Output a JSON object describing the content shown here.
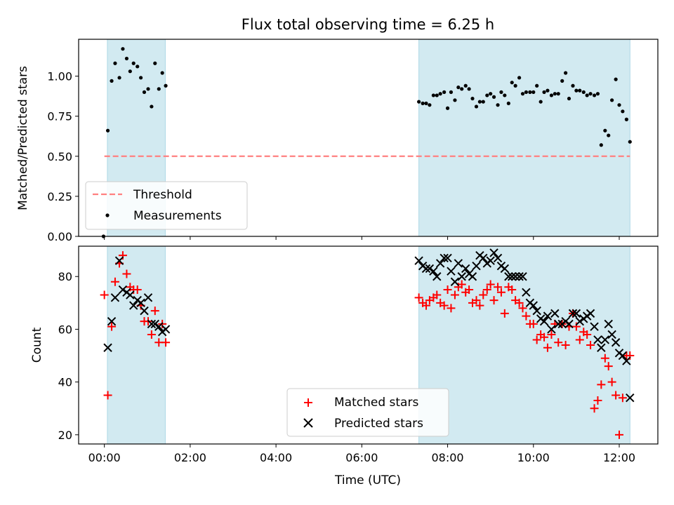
{
  "title": "Flux total observing time = 6.25 h",
  "colors": {
    "span": "#add8e6",
    "threshold": "#ff8080",
    "matched": "#ff0000",
    "predicted": "#000000"
  },
  "chart_data": [
    {
      "type": "scatter",
      "ylabel": "Matched/Predicted stars",
      "xlim": [
        -0.6,
        12.9
      ],
      "ylim": [
        0,
        1.23
      ],
      "yticks": [
        "0.00",
        "0.25",
        "0.50",
        "0.75",
        "1.00"
      ],
      "grid": false,
      "legend": "lower-left",
      "shaded_spans": [
        [
          0.07,
          1.42
        ],
        [
          7.33,
          12.25
        ]
      ],
      "threshold": {
        "name": "Threshold",
        "y": 0.5,
        "x": [
          0.0,
          12.25
        ]
      },
      "series": [
        {
          "name": "Measurements",
          "x": [
            -0.02,
            0.08,
            0.17,
            0.25,
            0.35,
            0.43,
            0.52,
            0.6,
            0.68,
            0.77,
            0.85,
            0.93,
            1.02,
            1.1,
            1.18,
            1.27,
            1.35,
            1.43,
            7.33,
            7.42,
            7.5,
            7.58,
            7.67,
            7.75,
            7.83,
            7.92,
            8.0,
            8.08,
            8.17,
            8.25,
            8.33,
            8.42,
            8.5,
            8.58,
            8.67,
            8.75,
            8.83,
            8.92,
            9.0,
            9.08,
            9.17,
            9.25,
            9.33,
            9.42,
            9.5,
            9.58,
            9.67,
            9.75,
            9.83,
            9.92,
            10.0,
            10.08,
            10.17,
            10.25,
            10.33,
            10.42,
            10.5,
            10.58,
            10.67,
            10.75,
            10.83,
            10.92,
            11.0,
            11.08,
            11.17,
            11.25,
            11.33,
            11.42,
            11.5,
            11.58,
            11.67,
            11.75,
            11.83,
            11.92,
            12.0,
            12.08,
            12.17,
            12.25
          ],
          "y": [
            0.0,
            0.66,
            0.97,
            1.08,
            0.99,
            1.17,
            1.11,
            1.03,
            1.08,
            1.06,
            0.99,
            0.9,
            0.92,
            0.81,
            1.08,
            0.92,
            1.02,
            0.94,
            0.84,
            0.83,
            0.83,
            0.82,
            0.88,
            0.88,
            0.89,
            0.9,
            0.8,
            0.9,
            0.85,
            0.93,
            0.92,
            0.94,
            0.92,
            0.86,
            0.81,
            0.84,
            0.84,
            0.88,
            0.89,
            0.87,
            0.82,
            0.9,
            0.88,
            0.83,
            0.96,
            0.94,
            0.99,
            0.89,
            0.9,
            0.9,
            0.9,
            0.94,
            0.84,
            0.9,
            0.91,
            0.88,
            0.89,
            0.89,
            0.97,
            1.02,
            0.86,
            0.94,
            0.91,
            0.91,
            0.9,
            0.88,
            0.89,
            0.88,
            0.89,
            0.57,
            0.66,
            0.63,
            0.85,
            0.98,
            0.82,
            0.78,
            0.73,
            0.59
          ]
        }
      ]
    },
    {
      "type": "scatter",
      "xlabel": "Time (UTC)",
      "ylabel": "Count",
      "xlim": [
        -0.6,
        12.9
      ],
      "ylim": [
        16.5,
        91.5
      ],
      "xticks": [
        "00:00",
        "02:00",
        "04:00",
        "06:00",
        "08:00",
        "10:00",
        "12:00"
      ],
      "yticks": [
        "20",
        "40",
        "60",
        "80"
      ],
      "grid": false,
      "legend": "lower-center",
      "shaded_spans": [
        [
          0.07,
          1.42
        ],
        [
          7.33,
          12.25
        ]
      ],
      "series": [
        {
          "name": "Matched stars",
          "marker": "+",
          "x": [
            0.0,
            0.08,
            0.17,
            0.25,
            0.35,
            0.43,
            0.52,
            0.6,
            0.68,
            0.77,
            0.85,
            0.93,
            1.02,
            1.1,
            1.18,
            1.27,
            1.35,
            1.43,
            7.33,
            7.42,
            7.5,
            7.58,
            7.67,
            7.75,
            7.83,
            7.92,
            8.0,
            8.08,
            8.17,
            8.25,
            8.33,
            8.42,
            8.5,
            8.58,
            8.67,
            8.75,
            8.83,
            8.92,
            9.0,
            9.08,
            9.17,
            9.25,
            9.33,
            9.42,
            9.5,
            9.58,
            9.67,
            9.75,
            9.83,
            9.92,
            10.0,
            10.08,
            10.17,
            10.25,
            10.33,
            10.42,
            10.5,
            10.58,
            10.67,
            10.75,
            10.83,
            10.92,
            11.0,
            11.08,
            11.17,
            11.25,
            11.33,
            11.42,
            11.5,
            11.58,
            11.67,
            11.75,
            11.83,
            11.92,
            12.0,
            12.08,
            12.17,
            12.25
          ],
          "y": [
            73,
            35,
            61,
            78,
            85,
            88,
            81,
            76,
            75,
            75,
            69,
            63,
            63,
            58,
            67,
            55,
            62,
            55,
            72,
            70,
            69,
            71,
            72,
            73,
            70,
            69,
            75,
            68,
            73,
            76,
            77,
            74,
            75,
            70,
            71,
            69,
            73,
            75,
            77,
            71,
            76,
            74,
            66,
            76,
            75,
            71,
            70,
            68,
            65,
            62,
            62,
            56,
            58,
            57,
            53,
            58,
            62,
            55,
            62,
            54,
            61,
            66,
            61,
            56,
            59,
            58,
            54,
            30,
            33,
            39,
            49,
            46,
            40,
            35,
            20,
            34,
            50,
            50
          ]
        },
        {
          "name": "Predicted stars",
          "marker": "x",
          "x": [
            0.08,
            0.17,
            0.25,
            0.35,
            0.43,
            0.52,
            0.6,
            0.68,
            0.77,
            0.85,
            0.93,
            1.02,
            1.1,
            1.18,
            1.27,
            1.35,
            1.43,
            7.33,
            7.42,
            7.5,
            7.58,
            7.67,
            7.75,
            7.83,
            7.92,
            8.0,
            8.08,
            8.17,
            8.25,
            8.33,
            8.42,
            8.5,
            8.58,
            8.67,
            8.75,
            8.83,
            8.92,
            9.0,
            9.08,
            9.17,
            9.25,
            9.33,
            9.42,
            9.5,
            9.58,
            9.67,
            9.75,
            9.83,
            9.92,
            10.0,
            10.08,
            10.17,
            10.25,
            10.33,
            10.42,
            10.5,
            10.58,
            10.67,
            10.75,
            10.83,
            10.92,
            11.0,
            11.08,
            11.17,
            11.25,
            11.33,
            11.42,
            11.5,
            11.58,
            11.67,
            11.75,
            11.83,
            11.92,
            12.0,
            12.08,
            12.17,
            12.25
          ],
          "y": [
            53,
            63,
            72,
            86,
            75,
            74,
            73,
            69,
            71,
            70,
            67,
            72,
            62,
            62,
            61,
            59,
            60,
            86,
            84,
            83,
            83,
            82,
            80,
            85,
            87,
            87,
            82,
            78,
            85,
            80,
            83,
            81,
            80,
            84,
            88,
            87,
            85,
            86,
            89,
            87,
            84,
            83,
            80,
            80,
            80,
            80,
            80,
            74,
            70,
            69,
            67,
            64,
            63,
            65,
            60,
            66,
            62,
            62,
            63,
            62,
            66,
            66,
            63,
            64,
            65,
            66,
            61,
            56,
            53,
            56,
            62,
            58,
            55,
            51,
            50,
            48,
            34
          ]
        }
      ]
    }
  ]
}
